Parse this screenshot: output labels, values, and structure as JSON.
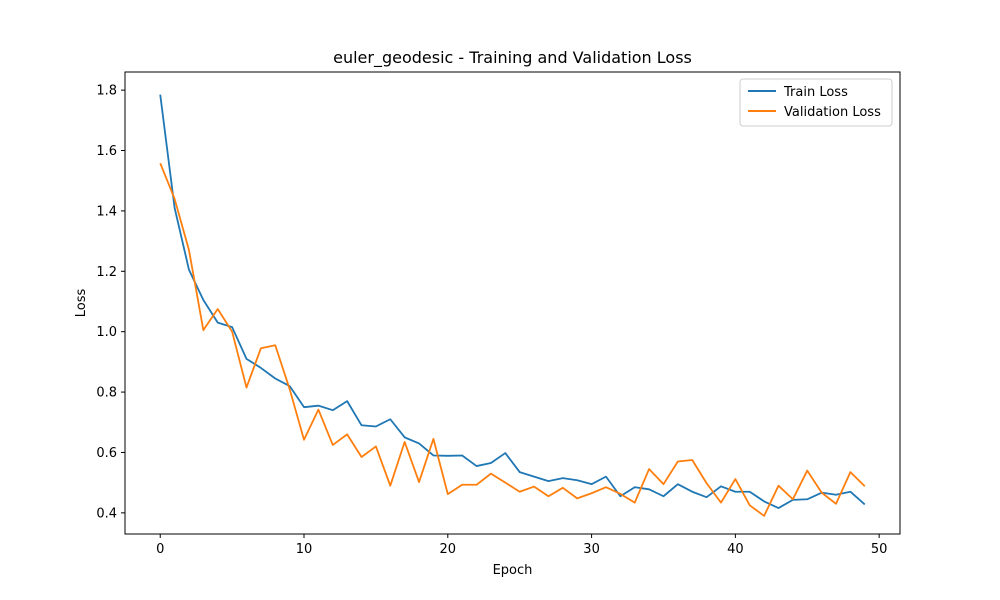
{
  "chart_data": {
    "type": "line",
    "title": "euler_geodesic - Training and Validation Loss",
    "xlabel": "Epoch",
    "ylabel": "Loss",
    "xlim": [
      -2.45,
      51.45
    ],
    "ylim": [
      0.33,
      1.86
    ],
    "xticks": [
      0,
      10,
      20,
      30,
      40,
      50
    ],
    "yticks": [
      0.4,
      0.6,
      0.8,
      1.0,
      1.2,
      1.4,
      1.6,
      1.8
    ],
    "ytick_labels": [
      "0.4",
      "0.6",
      "0.8",
      "1.0",
      "1.2",
      "1.4",
      "1.6",
      "1.8"
    ],
    "legend_position": "top-right",
    "x": [
      0,
      1,
      2,
      3,
      4,
      5,
      6,
      7,
      8,
      9,
      10,
      11,
      12,
      13,
      14,
      15,
      16,
      17,
      18,
      19,
      20,
      21,
      22,
      23,
      24,
      25,
      26,
      27,
      28,
      29,
      30,
      31,
      32,
      33,
      34,
      35,
      36,
      37,
      38,
      39,
      40,
      41,
      42,
      43,
      44,
      45,
      46,
      47,
      48,
      49
    ],
    "series": [
      {
        "name": "Train Loss",
        "color": "#1f77b4",
        "values": [
          1.785,
          1.41,
          1.205,
          1.105,
          1.03,
          1.015,
          0.91,
          0.88,
          0.845,
          0.82,
          0.75,
          0.755,
          0.74,
          0.77,
          0.69,
          0.686,
          0.71,
          0.65,
          0.63,
          0.59,
          0.589,
          0.59,
          0.555,
          0.565,
          0.598,
          0.535,
          0.52,
          0.505,
          0.515,
          0.508,
          0.495,
          0.52,
          0.455,
          0.485,
          0.478,
          0.455,
          0.495,
          0.47,
          0.452,
          0.488,
          0.47,
          0.47,
          0.438,
          0.416,
          0.443,
          0.445,
          0.467,
          0.46,
          0.47,
          0.428
        ]
      },
      {
        "name": "Validation Loss",
        "color": "#ff7f0e",
        "values": [
          1.558,
          1.44,
          1.27,
          1.005,
          1.075,
          1.0,
          0.815,
          0.945,
          0.955,
          0.81,
          0.642,
          0.742,
          0.625,
          0.66,
          0.585,
          0.62,
          0.49,
          0.635,
          0.502,
          0.645,
          0.462,
          0.493,
          0.493,
          0.53,
          0.5,
          0.47,
          0.487,
          0.455,
          0.483,
          0.448,
          0.465,
          0.485,
          0.463,
          0.434,
          0.545,
          0.495,
          0.57,
          0.575,
          0.498,
          0.434,
          0.512,
          0.425,
          0.39,
          0.49,
          0.445,
          0.54,
          0.467,
          0.43,
          0.535,
          0.488
        ]
      }
    ]
  }
}
